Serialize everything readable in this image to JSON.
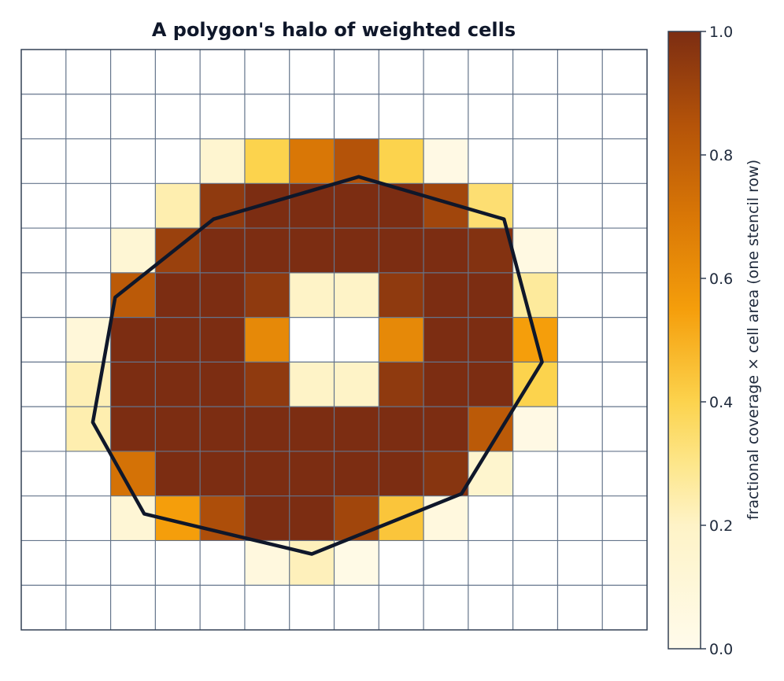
{
  "chart_data": {
    "type": "heatmap",
    "title": "A polygon's halo of weighted cells",
    "xlabel": "",
    "ylabel": "",
    "grid": true,
    "nx": 14,
    "ny": 13,
    "x_range": [
      0,
      14
    ],
    "y_range": [
      0,
      13
    ],
    "values": [
      [
        0,
        0,
        0,
        0,
        0,
        0,
        0,
        0,
        0,
        0,
        0,
        0,
        0,
        0
      ],
      [
        0,
        0,
        0,
        0,
        0,
        0,
        0,
        0,
        0,
        0,
        0,
        0,
        0,
        0
      ],
      [
        0,
        0,
        0,
        0,
        0.15,
        0.4,
        0.7,
        0.85,
        0.4,
        0.04,
        0,
        0,
        0,
        0
      ],
      [
        0,
        0,
        0,
        0.24,
        0.95,
        1,
        1,
        1,
        1,
        0.9,
        0.34,
        0,
        0,
        0
      ],
      [
        0,
        0,
        0.13,
        0.92,
        1,
        1,
        1,
        1,
        1,
        1,
        0.98,
        0.05,
        0,
        0
      ],
      [
        0,
        0,
        0.82,
        1,
        1,
        0.95,
        0.2,
        0.2,
        0.95,
        1,
        1,
        0.27,
        0,
        0
      ],
      [
        0,
        0.1,
        1,
        1,
        1,
        0.63,
        0,
        0,
        0.63,
        1,
        1,
        0.55,
        0,
        0
      ],
      [
        0,
        0.23,
        1,
        1,
        1,
        0.95,
        0.2,
        0.2,
        0.95,
        1,
        1,
        0.4,
        0,
        0
      ],
      [
        0,
        0.24,
        1,
        1,
        1,
        1,
        1,
        1,
        1,
        1,
        0.82,
        0.04,
        0,
        0
      ],
      [
        0,
        0,
        0.72,
        1,
        1,
        1,
        1,
        1,
        1,
        0.97,
        0.16,
        0,
        0,
        0
      ],
      [
        0,
        0,
        0.12,
        0.55,
        0.87,
        1,
        1,
        0.9,
        0.44,
        0.07,
        0,
        0,
        0,
        0
      ],
      [
        0,
        0,
        0,
        0,
        0,
        0.07,
        0.22,
        0.03,
        0,
        0,
        0,
        0,
        0,
        0
      ],
      [
        0,
        0,
        0,
        0,
        0,
        0,
        0,
        0,
        0,
        0,
        0,
        0,
        0,
        0
      ]
    ],
    "polygon": [
      [
        7.55,
        10.15
      ],
      [
        10.8,
        9.2
      ],
      [
        11.65,
        6.0
      ],
      [
        9.85,
        3.05
      ],
      [
        6.5,
        1.7
      ],
      [
        2.75,
        2.6
      ],
      [
        1.6,
        4.65
      ],
      [
        2.1,
        7.45
      ],
      [
        4.3,
        9.2
      ]
    ],
    "colorbar": {
      "label": "fractional coverage  ×  cell area  (one stencil row)",
      "range": [
        0,
        1
      ],
      "ticks": [
        "0.0",
        "0.2",
        "0.4",
        "0.6",
        "0.8",
        "1.0"
      ],
      "tick_values": [
        0,
        0.2,
        0.4,
        0.6,
        0.8,
        1.0
      ]
    },
    "colormap": {
      "stops": [
        [
          0.0,
          "#fffbeb"
        ],
        [
          0.2,
          "#fef3c7"
        ],
        [
          0.3,
          "#fde68a"
        ],
        [
          0.4,
          "#fcd34d"
        ],
        [
          0.55,
          "#f59e0b"
        ],
        [
          0.7,
          "#d97706"
        ],
        [
          0.85,
          "#b45309"
        ],
        [
          1.0,
          "#7c2d12"
        ]
      ],
      "grid_color": "#64748b",
      "polygon_color": "#0f172a"
    }
  }
}
